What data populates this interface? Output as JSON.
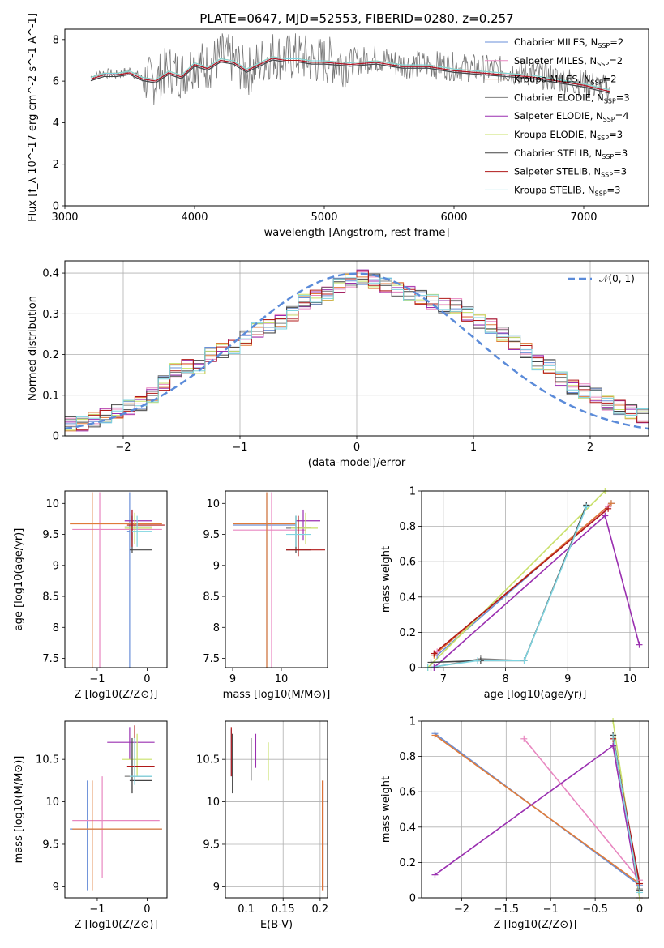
{
  "figure_title": "PLATE=0647, MJD=52553, FIBERID=0280, z=0.257",
  "legend_entries": [
    {
      "label": "Chabrier MILES, N",
      "sub": "SSP",
      "suffix": "=2",
      "color": "#6a8fd8"
    },
    {
      "label": "Salpeter MILES, N",
      "sub": "SSP",
      "suffix": "=2",
      "color": "#e887c0"
    },
    {
      "label": "Kroupa MILES, N",
      "sub": "SSP",
      "suffix": "=2",
      "color": "#e07b39"
    },
    {
      "label": "Chabrier ELODIE, N",
      "sub": "SSP",
      "suffix": "=3",
      "color": "#808080"
    },
    {
      "label": "Salpeter ELODIE, N",
      "sub": "SSP",
      "suffix": "=4",
      "color": "#9a2fb0"
    },
    {
      "label": "Kroupa ELODIE, N",
      "sub": "SSP",
      "suffix": "=3",
      "color": "#c8e068"
    },
    {
      "label": "Chabrier STELIB, N",
      "sub": "SSP",
      "suffix": "=3",
      "color": "#444444"
    },
    {
      "label": "Salpeter STELIB, N",
      "sub": "SSP",
      "suffix": "=3",
      "color": "#b01818"
    },
    {
      "label": "Kroupa STELIB, N",
      "sub": "SSP",
      "suffix": "=3",
      "color": "#7fd4e0"
    }
  ],
  "chart_data": [
    {
      "id": "spectrum",
      "type": "line",
      "xlabel": "wavelength [Angstrom, rest frame]",
      "ylabel": "Flux [f_λ 10^-17 erg cm^-2 s^-1 A^-1]",
      "xlim": [
        3000,
        7500
      ],
      "ylim": [
        0,
        8.5
      ],
      "xticks": [
        3000,
        4000,
        5000,
        6000,
        7000
      ],
      "yticks": [
        0,
        2,
        4,
        6,
        8
      ],
      "grid": false,
      "legend_placement": "upper right",
      "data_x": [
        3200,
        3300,
        3400,
        3500,
        3600,
        3700,
        3800,
        3900,
        4000,
        4100,
        4200,
        4300,
        4400,
        4500,
        4600,
        4700,
        4800,
        4900,
        5000,
        5200,
        5400,
        5600,
        5800,
        6000,
        6200,
        6400,
        6600,
        6800,
        7000,
        7200
      ],
      "data_y": [
        6.2,
        6.4,
        6.3,
        6.5,
        6.1,
        6.0,
        6.6,
        6.3,
        6.9,
        6.7,
        7.2,
        7.0,
        6.4,
        6.9,
        7.3,
        7.1,
        7.2,
        7.0,
        7.0,
        6.9,
        7.1,
        6.8,
        6.8,
        6.7,
        6.6,
        6.5,
        6.4,
        6.1,
        5.9,
        5.6
      ],
      "model_y": [
        6.1,
        6.3,
        6.3,
        6.4,
        6.1,
        6.0,
        6.4,
        6.2,
        6.8,
        6.6,
        7.0,
        6.9,
        6.5,
        6.8,
        7.1,
        7.0,
        7.0,
        6.9,
        6.9,
        6.8,
        6.9,
        6.7,
        6.7,
        6.5,
        6.4,
        6.3,
        6.2,
        6.0,
        5.8,
        5.5
      ]
    },
    {
      "id": "residuals",
      "type": "line",
      "xlabel": "(data-model)/error",
      "ylabel": "Normed distribution",
      "xlim": [
        -2.5,
        2.5
      ],
      "ylim": [
        0,
        0.43
      ],
      "xticks": [
        -2,
        -1,
        0,
        1,
        2
      ],
      "yticks": [
        0.0,
        0.1,
        0.2,
        0.3,
        0.4
      ],
      "grid": true,
      "legend_placement": "upper right",
      "legend_label": "𝒩(0, 1)",
      "histogram_bin_width": 0.1,
      "histogram_values": [
        0.03,
        0.03,
        0.04,
        0.05,
        0.06,
        0.07,
        0.08,
        0.1,
        0.13,
        0.16,
        0.17,
        0.17,
        0.2,
        0.21,
        0.22,
        0.24,
        0.26,
        0.27,
        0.28,
        0.3,
        0.33,
        0.34,
        0.35,
        0.37,
        0.38,
        0.39,
        0.38,
        0.37,
        0.36,
        0.35,
        0.34,
        0.33,
        0.32,
        0.32,
        0.3,
        0.28,
        0.27,
        0.25,
        0.23,
        0.21,
        0.18,
        0.17,
        0.14,
        0.12,
        0.11,
        0.1,
        0.08,
        0.07,
        0.06,
        0.05
      ]
    },
    {
      "id": "age_vs_Z",
      "type": "scatter",
      "xlabel": "Z [log10(Z/Z⊙)]",
      "ylabel": "age  [log10(age/yr)]",
      "xlim": [
        -1.65,
        0.4
      ],
      "ylim": [
        7.35,
        10.2
      ],
      "xticks": [
        -1,
        0
      ],
      "yticks": [
        7.5,
        8.0,
        8.5,
        9.0,
        9.5,
        10.0
      ],
      "grid": false,
      "points": [
        {
          "x": -0.35,
          "xlo": -0.4,
          "xhi": -0.35,
          "y": 9.55,
          "ylo": 7.15,
          "yhi": 10.18,
          "c": "#6a8fd8"
        },
        {
          "x": -0.95,
          "xlo": -1.5,
          "xhi": 0.3,
          "y": 9.58,
          "ylo": 7.15,
          "yhi": 10.18,
          "c": "#e887c0"
        },
        {
          "x": -1.1,
          "xlo": -1.55,
          "xhi": 0.3,
          "y": 9.67,
          "ylo": 7.15,
          "yhi": 10.18,
          "c": "#e07b39"
        },
        {
          "x": -0.3,
          "xlo": -0.45,
          "xhi": 0.1,
          "y": 9.62,
          "ylo": 9.3,
          "yhi": 9.8,
          "c": "#808080"
        },
        {
          "x": -0.3,
          "xlo": -0.45,
          "xhi": 0.1,
          "y": 9.72,
          "ylo": 9.4,
          "yhi": 9.9,
          "c": "#9a2fb0"
        },
        {
          "x": -0.25,
          "xlo": -0.45,
          "xhi": 0.1,
          "y": 9.6,
          "ylo": 9.35,
          "yhi": 9.85,
          "c": "#c8e068"
        },
        {
          "x": -0.3,
          "xlo": -0.35,
          "xhi": 0.1,
          "y": 9.25,
          "ylo": 9.2,
          "yhi": 9.8,
          "c": "#444444"
        },
        {
          "x": -0.3,
          "xlo": -0.4,
          "xhi": 0.35,
          "y": 9.65,
          "ylo": 9.3,
          "yhi": 9.9,
          "c": "#b01818"
        },
        {
          "x": -0.2,
          "xlo": -0.3,
          "xhi": 0.1,
          "y": 9.55,
          "ylo": 9.3,
          "yhi": 9.8,
          "c": "#7fd4e0"
        }
      ]
    },
    {
      "id": "age_vs_mass",
      "type": "scatter",
      "xlabel": "mass [log10(M/M⊙)]",
      "ylabel": "",
      "xlim": [
        8.85,
        10.95
      ],
      "ylim": [
        7.35,
        10.2
      ],
      "xticks": [
        9,
        10
      ],
      "yticks": [
        7.5,
        8.0,
        8.5,
        9.0,
        9.5,
        10.0
      ],
      "grid": false,
      "points": [
        {
          "x": 9.7,
          "xlo": 9.0,
          "xhi": 10.3,
          "y": 9.65,
          "ylo": 7.15,
          "yhi": 10.18,
          "c": "#6a8fd8"
        },
        {
          "x": 9.8,
          "xlo": 9.0,
          "xhi": 10.5,
          "y": 9.57,
          "ylo": 7.15,
          "yhi": 10.18,
          "c": "#e887c0"
        },
        {
          "x": 9.7,
          "xlo": 9.0,
          "xhi": 10.3,
          "y": 9.67,
          "ylo": 7.15,
          "yhi": 10.18,
          "c": "#e07b39"
        },
        {
          "x": 10.3,
          "xlo": 10.1,
          "xhi": 10.6,
          "y": 9.6,
          "ylo": 9.3,
          "yhi": 9.8,
          "c": "#808080"
        },
        {
          "x": 10.45,
          "xlo": 10.3,
          "xhi": 10.8,
          "y": 9.72,
          "ylo": 9.4,
          "yhi": 9.9,
          "c": "#9a2fb0"
        },
        {
          "x": 10.5,
          "xlo": 10.2,
          "xhi": 10.75,
          "y": 9.6,
          "ylo": 9.35,
          "yhi": 9.85,
          "c": "#c8e068"
        },
        {
          "x": 10.3,
          "xlo": 10.1,
          "xhi": 10.6,
          "y": 9.25,
          "ylo": 9.2,
          "yhi": 9.8,
          "c": "#444444"
        },
        {
          "x": 10.35,
          "xlo": 10.1,
          "xhi": 10.9,
          "y": 9.25,
          "ylo": 9.15,
          "yhi": 9.8,
          "c": "#b01818"
        },
        {
          "x": 10.3,
          "xlo": 10.1,
          "xhi": 10.6,
          "y": 9.5,
          "ylo": 9.3,
          "yhi": 9.8,
          "c": "#7fd4e0"
        }
      ]
    },
    {
      "id": "weight_vs_age",
      "type": "line",
      "xlabel": "age  [log10(age/yr)]",
      "ylabel": "mass weight",
      "xlim": [
        6.65,
        10.3
      ],
      "ylim": [
        0,
        1.0
      ],
      "xticks": [
        7,
        8,
        9,
        10
      ],
      "yticks": [
        0.0,
        0.2,
        0.4,
        0.6,
        0.8,
        1.0
      ],
      "grid": true,
      "series": [
        {
          "c": "#6a8fd8",
          "x": [
            6.9,
            9.7
          ],
          "y": [
            0.07,
            0.93
          ]
        },
        {
          "c": "#e887c0",
          "x": [
            6.9,
            9.65
          ],
          "y": [
            0.09,
            0.91
          ]
        },
        {
          "c": "#e07b39",
          "x": [
            6.85,
            9.7
          ],
          "y": [
            0.07,
            0.93
          ]
        },
        {
          "c": "#808080",
          "x": [
            6.8,
            7.6,
            8.3,
            9.3
          ],
          "y": [
            0.0,
            0.05,
            0.04,
            0.92
          ]
        },
        {
          "c": "#9a2fb0",
          "x": [
            6.85,
            9.6,
            10.15
          ],
          "y": [
            0.0,
            0.86,
            0.13
          ]
        },
        {
          "c": "#c8e068",
          "x": [
            6.75,
            9.6
          ],
          "y": [
            0.0,
            1.0
          ]
        },
        {
          "c": "#444444",
          "x": [
            6.8,
            7.6,
            8.3,
            9.3
          ],
          "y": [
            0.03,
            0.04,
            0.04,
            0.92
          ]
        },
        {
          "c": "#b01818",
          "x": [
            6.85,
            9.65
          ],
          "y": [
            0.08,
            0.9
          ]
        },
        {
          "c": "#7fd4e0",
          "x": [
            6.75,
            7.55,
            8.3,
            9.3
          ],
          "y": [
            0.0,
            0.04,
            0.04,
            0.91
          ]
        }
      ]
    },
    {
      "id": "mass_vs_Z",
      "type": "scatter",
      "xlabel": "Z [log10(Z/Z⊙)]",
      "ylabel": "mass [log10(M/M⊙)]",
      "xlim": [
        -1.65,
        0.4
      ],
      "ylim": [
        8.87,
        10.95
      ],
      "xticks": [
        -1,
        0
      ],
      "yticks": [
        9.0,
        9.5,
        10.0,
        10.5
      ],
      "grid": false,
      "points": [
        {
          "x": -1.2,
          "xlo": -1.55,
          "xhi": 0.3,
          "y": 9.68,
          "ylo": 8.95,
          "yhi": 10.25,
          "c": "#6a8fd8"
        },
        {
          "x": -0.9,
          "xlo": -1.5,
          "xhi": 0.25,
          "y": 9.78,
          "ylo": 9.1,
          "yhi": 10.3,
          "c": "#e887c0"
        },
        {
          "x": -1.1,
          "xlo": -1.5,
          "xhi": 0.3,
          "y": 9.68,
          "ylo": 8.95,
          "yhi": 10.25,
          "c": "#e07b39"
        },
        {
          "x": -0.3,
          "xlo": -0.45,
          "xhi": 0.1,
          "y": 10.3,
          "ylo": 10.1,
          "yhi": 10.7,
          "c": "#808080"
        },
        {
          "x": -0.35,
          "xlo": -0.8,
          "xhi": 0.15,
          "y": 10.7,
          "ylo": 10.5,
          "yhi": 10.88,
          "c": "#9a2fb0"
        },
        {
          "x": -0.2,
          "xlo": -0.5,
          "xhi": 0.1,
          "y": 10.5,
          "ylo": 10.3,
          "yhi": 10.8,
          "c": "#c8e068"
        },
        {
          "x": -0.3,
          "xlo": -0.35,
          "xhi": 0.1,
          "y": 10.25,
          "ylo": 10.1,
          "yhi": 10.75,
          "c": "#444444"
        },
        {
          "x": -0.25,
          "xlo": -0.4,
          "xhi": 0.15,
          "y": 10.42,
          "ylo": 10.25,
          "yhi": 10.9,
          "c": "#b01818"
        },
        {
          "x": -0.25,
          "xlo": -0.35,
          "xhi": 0.1,
          "y": 10.3,
          "ylo": 10.2,
          "yhi": 10.75,
          "c": "#7fd4e0"
        }
      ]
    },
    {
      "id": "mass_vs_ebv",
      "type": "scatter",
      "xlabel": "E(B-V)",
      "ylabel": "",
      "xlim": [
        0.072,
        0.21
      ],
      "ylim": [
        8.87,
        10.95
      ],
      "xticks": [
        0.1,
        0.15,
        0.2
      ],
      "yticks": [
        9.0,
        9.5,
        10.0,
        10.5
      ],
      "grid": true,
      "points": [
        {
          "x": 0.08,
          "y": 10.45,
          "ylo": 10.3,
          "yhi": 10.85,
          "c": "#6a8fd8"
        },
        {
          "x": 0.08,
          "y": 10.6,
          "ylo": 10.3,
          "yhi": 10.88,
          "c": "#b01818"
        },
        {
          "x": 0.0815,
          "y": 10.5,
          "ylo": 10.1,
          "yhi": 10.8,
          "c": "#444444"
        },
        {
          "x": 0.107,
          "y": 10.45,
          "ylo": 10.25,
          "yhi": 10.75,
          "c": "#808080"
        },
        {
          "x": 0.113,
          "y": 10.6,
          "ylo": 10.4,
          "yhi": 10.8,
          "c": "#9a2fb0"
        },
        {
          "x": 0.13,
          "y": 10.45,
          "ylo": 10.25,
          "yhi": 10.7,
          "c": "#c8e068"
        },
        {
          "x": 0.203,
          "y": 9.68,
          "ylo": 8.95,
          "yhi": 10.25,
          "c": "#e07b39"
        },
        {
          "x": 0.204,
          "y": 9.68,
          "ylo": 8.95,
          "yhi": 10.25,
          "c": "#b01818"
        }
      ]
    },
    {
      "id": "weight_vs_Z",
      "type": "line",
      "xlabel": "Z [log10(Z/Z⊙)]",
      "ylabel": "mass weight",
      "xlim": [
        -2.45,
        0.1
      ],
      "ylim": [
        0,
        1.0
      ],
      "xticks": [
        -2.0,
        -1.5,
        -1.0,
        -0.5,
        0.0
      ],
      "yticks": [
        0.0,
        0.2,
        0.4,
        0.6,
        0.8,
        1.0
      ],
      "grid": true,
      "series": [
        {
          "c": "#6a8fd8",
          "x": [
            -2.3,
            0.0
          ],
          "y": [
            0.93,
            0.07
          ]
        },
        {
          "c": "#e887c0",
          "x": [
            -1.3,
            0.0
          ],
          "y": [
            0.9,
            0.1
          ]
        },
        {
          "c": "#e07b39",
          "x": [
            -2.3,
            0.0
          ],
          "y": [
            0.92,
            0.08
          ]
        },
        {
          "c": "#808080",
          "x": [
            -0.3,
            0.0
          ],
          "y": [
            0.92,
            0.05
          ]
        },
        {
          "c": "#9a2fb0",
          "x": [
            -2.3,
            -0.3,
            0.0
          ],
          "y": [
            0.13,
            0.86,
            0.0
          ]
        },
        {
          "c": "#c8e068",
          "x": [
            -0.3,
            0.0
          ],
          "y": [
            1.0,
            0.0
          ]
        },
        {
          "c": "#444444",
          "x": [
            -0.3,
            0.0
          ],
          "y": [
            0.92,
            0.04
          ]
        },
        {
          "c": "#b01818",
          "x": [
            -0.3,
            0.0
          ],
          "y": [
            0.9,
            0.08
          ]
        },
        {
          "c": "#7fd4e0",
          "x": [
            -0.3,
            0.0
          ],
          "y": [
            0.91,
            0.03
          ]
        }
      ]
    }
  ]
}
